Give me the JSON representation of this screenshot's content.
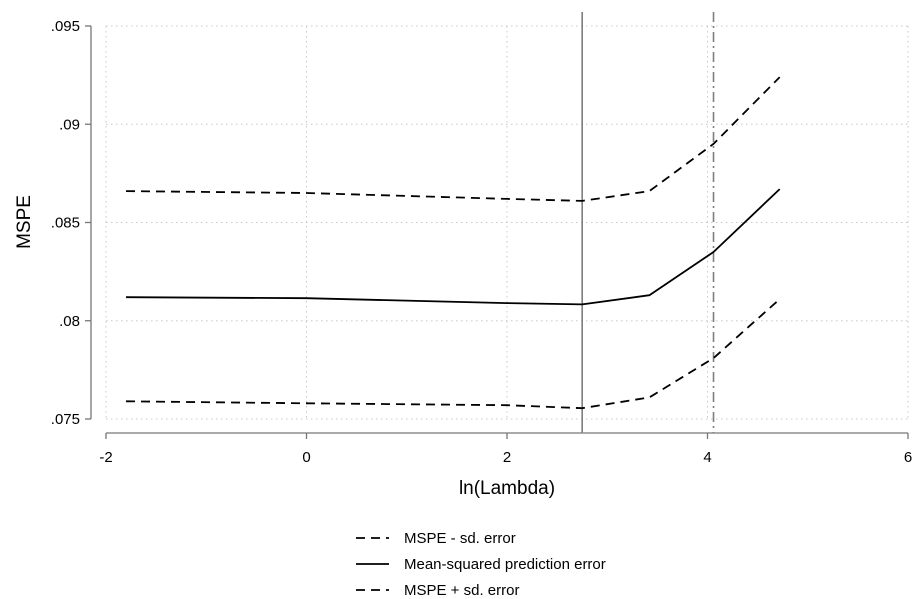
{
  "chart_data": {
    "type": "line",
    "xlabel": "ln(Lambda)",
    "ylabel": "MSPE",
    "xlim": [
      -2,
      6
    ],
    "ylim": [
      0.075,
      0.095
    ],
    "x_ticks": [
      -2,
      0,
      2,
      4,
      6
    ],
    "x_tick_labels": [
      "-2",
      "0",
      "2",
      "4",
      "6"
    ],
    "y_ticks": [
      0.075,
      0.08,
      0.085,
      0.09,
      0.095
    ],
    "y_tick_labels": [
      ".075",
      ".08",
      ".085",
      ".09",
      ".095"
    ],
    "grid": true,
    "legend_position": "bottom",
    "vertical_lines": [
      {
        "x": 2.75,
        "style": "solid"
      },
      {
        "x": 4.06,
        "style": "dash-dot"
      }
    ],
    "series": [
      {
        "name": "MSPE - sd. error",
        "style": "dashed",
        "x": [
          -1.8,
          0,
          2.0,
          2.75,
          3.42,
          4.06,
          4.72
        ],
        "y": [
          0.0759,
          0.0758,
          0.0757,
          0.07555,
          0.0761,
          0.0781,
          0.0811
        ]
      },
      {
        "name": "Mean-squared prediction error",
        "style": "solid",
        "x": [
          -1.8,
          0,
          2.0,
          2.75,
          3.42,
          4.06,
          4.72
        ],
        "y": [
          0.0812,
          0.08115,
          0.0809,
          0.08083,
          0.0813,
          0.0835,
          0.0867
        ]
      },
      {
        "name": "MSPE + sd. error",
        "style": "dashed",
        "x": [
          -1.8,
          0,
          2.0,
          2.75,
          3.42,
          4.06,
          4.72
        ],
        "y": [
          0.0866,
          0.0865,
          0.0862,
          0.0861,
          0.0866,
          0.089,
          0.0924
        ]
      }
    ]
  },
  "colors": {
    "line": "#000000",
    "axis": "#777777",
    "grid": "#c8c8c8",
    "vline": "#7f7f7f"
  }
}
